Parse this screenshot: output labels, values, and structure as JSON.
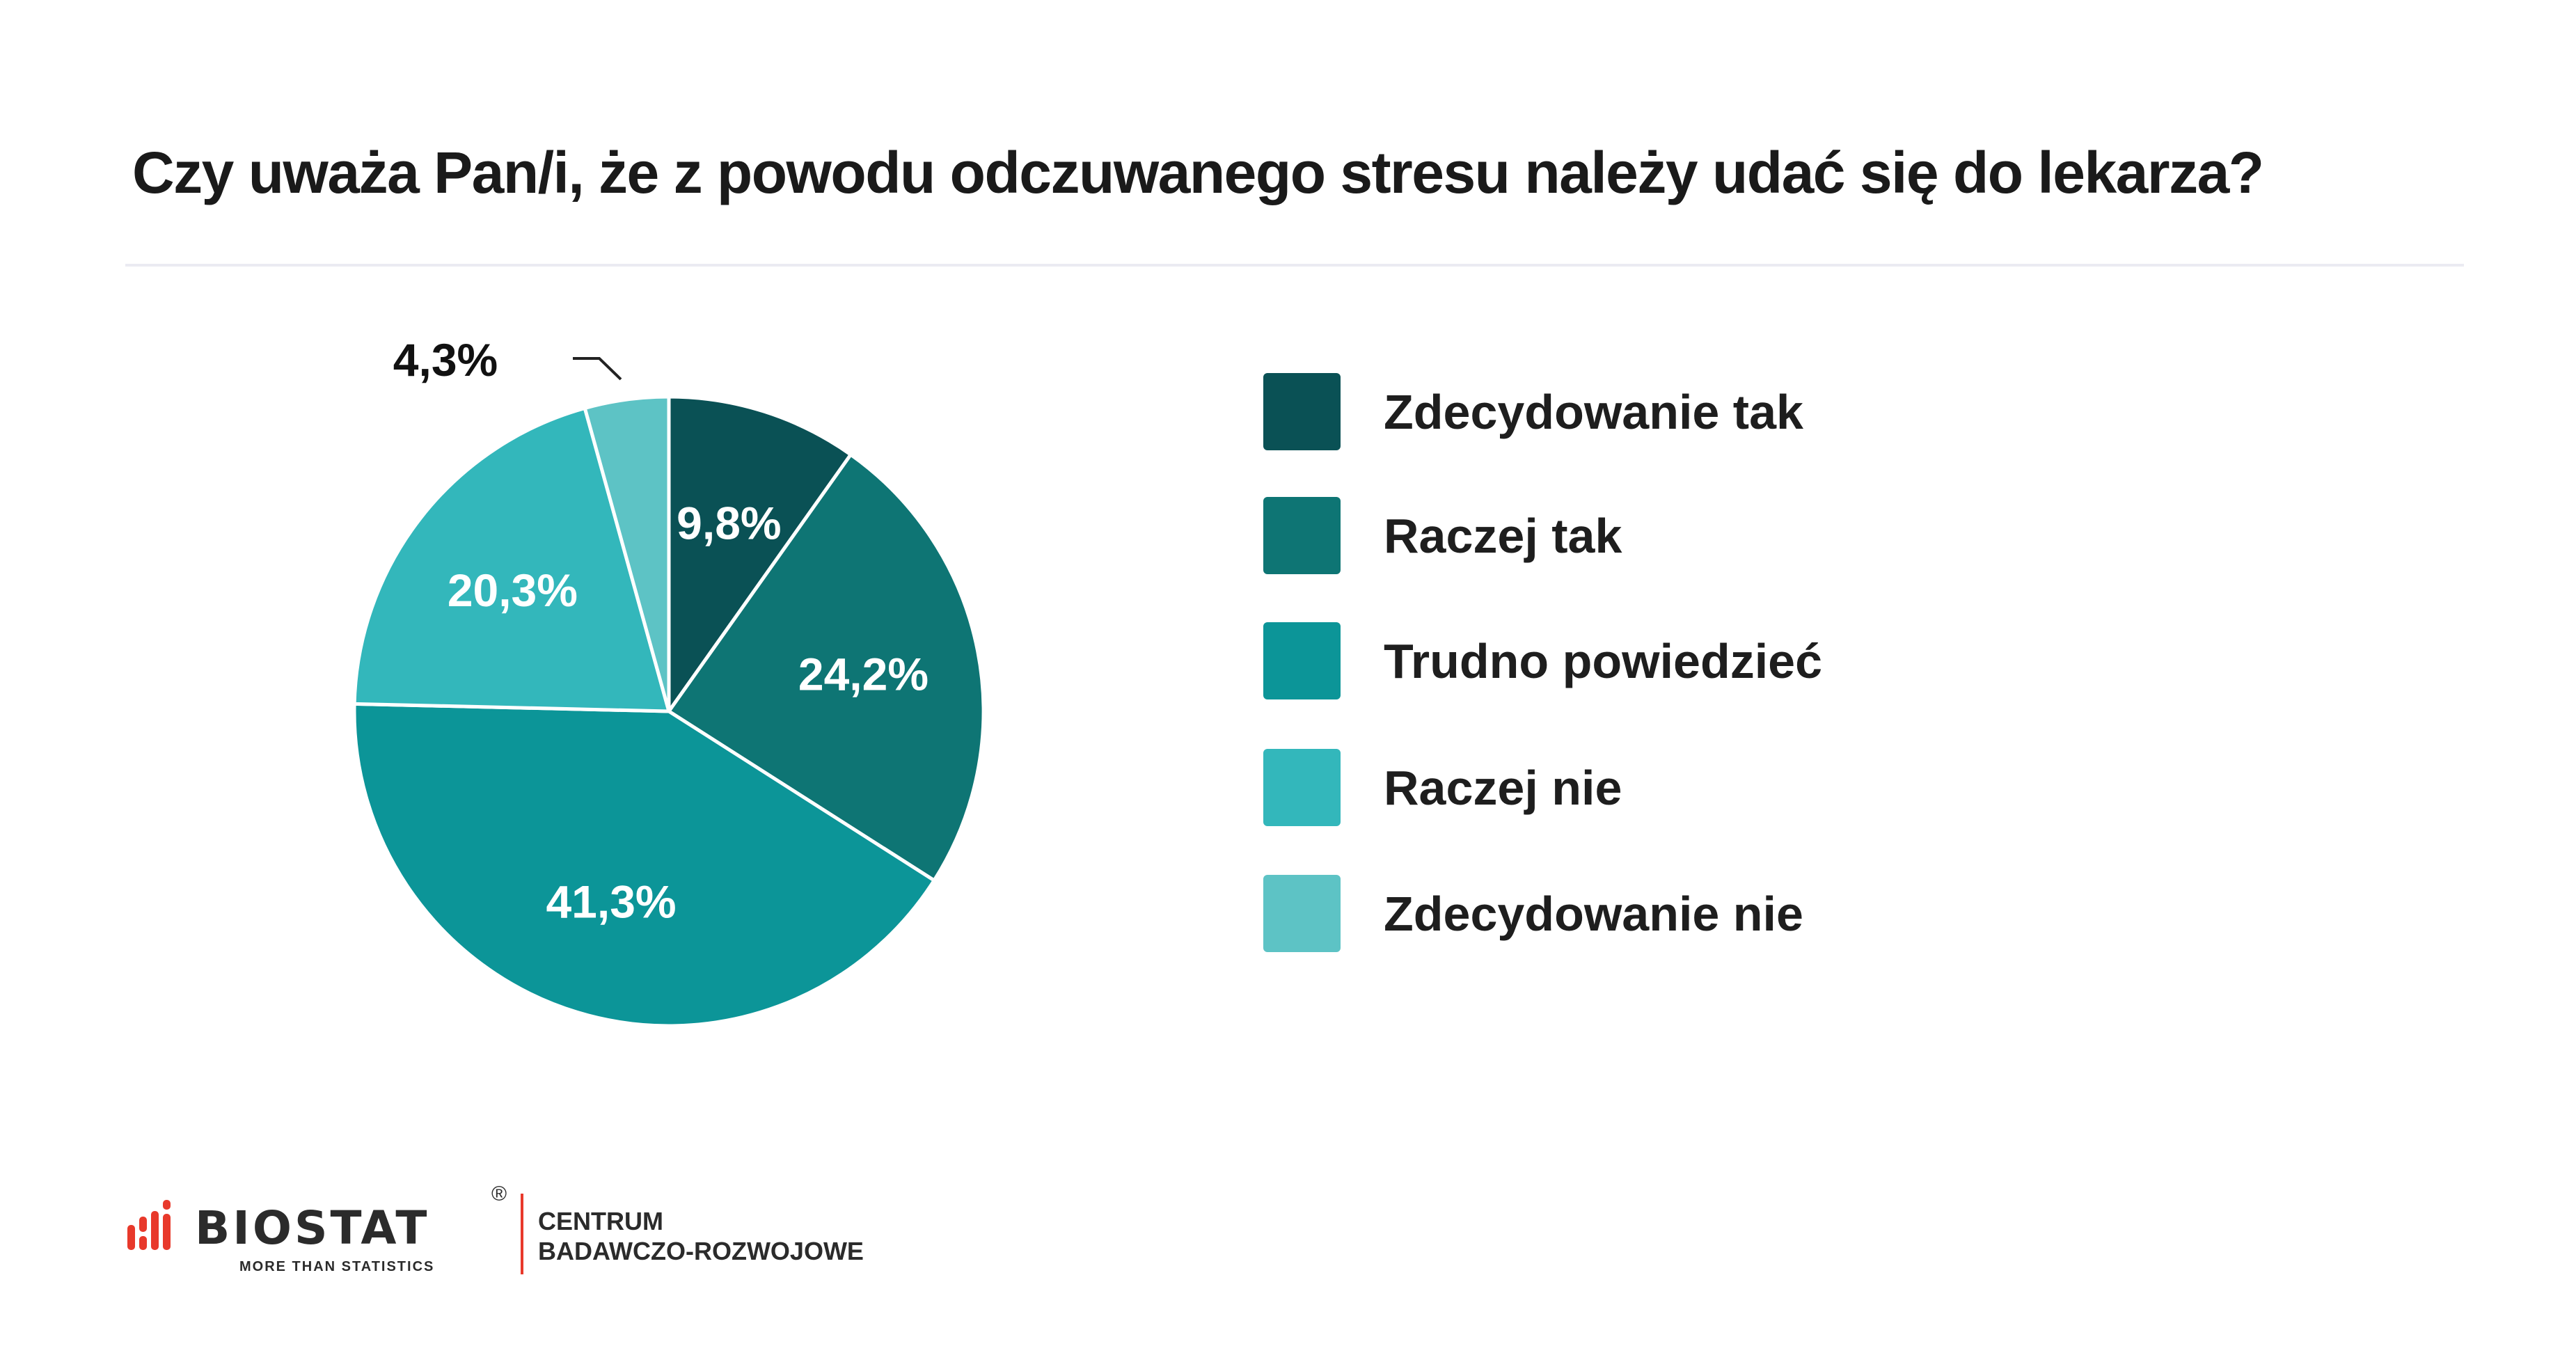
{
  "title": "Czy uważa Pan/i, że z powodu odczuwanego stresu należy udać się do lekarza?",
  "chart_data": {
    "type": "pie",
    "title": "Czy uważa Pan/i, że z powodu odczuwanego stresu należy udać się do lekarza?",
    "categories": [
      "Zdecydowanie tak",
      "Raczej tak",
      "Trudno powiedzieć",
      "Raczej nie",
      "Zdecydowanie nie"
    ],
    "values": [
      9.8,
      24.2,
      41.3,
      20.3,
      4.3
    ],
    "labels": [
      "9,8%",
      "24,2%",
      "41,3%",
      "20,3%",
      "4,3%"
    ],
    "colors": [
      "#0a5155",
      "#0e7574",
      "#0c9598",
      "#33b7bb",
      "#5dc3c5"
    ],
    "start": "top",
    "direction": "clockwise",
    "legend": "right"
  },
  "logo": {
    "brand": "BIOSTAT",
    "registered": "®",
    "tagline": "MORE THAN STATISTICS",
    "unit_line1": "CENTRUM",
    "unit_line2": "BADAWCZO-ROZWOJOWE",
    "accent": "#e8392b"
  }
}
